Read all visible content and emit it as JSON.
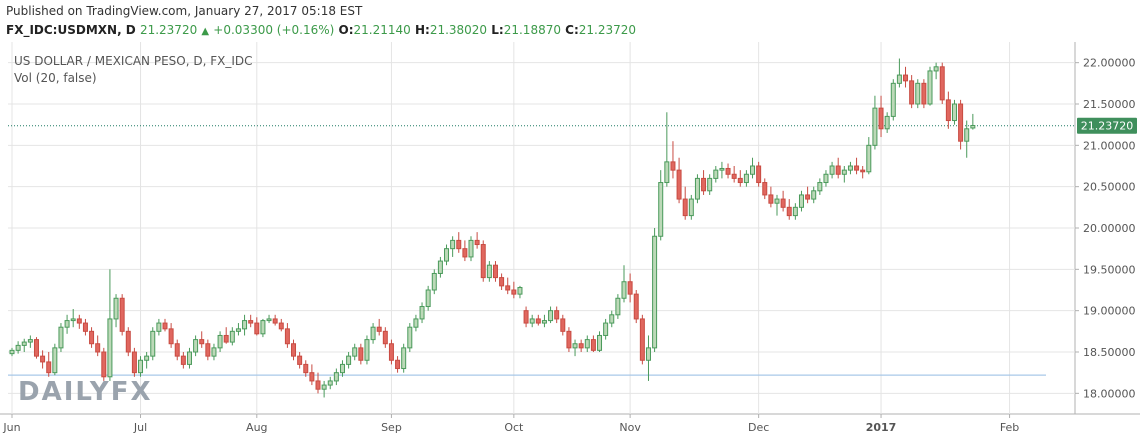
{
  "header": {
    "published": "Published on TradingView.com, January 27, 2017 05:18 EST",
    "symbol": "FX_IDC:USDMXN, D",
    "last": "21.23720",
    "change": "+0.03300 (+0.16%)",
    "o_label": "O:",
    "o_value": "21.21140",
    "h_label": "H:",
    "h_value": "21.38020",
    "l_label": "L:",
    "l_value": "21.18870",
    "c_label": "C:",
    "c_value": "21.23720"
  },
  "chart_data": {
    "type": "candlestick",
    "title": "US DOLLAR / MEXICAN PESO, D, FX_IDC",
    "indicator_label": "Vol (20, false)",
    "watermark": "DAILYFX",
    "ylim": [
      17.75,
      22.25
    ],
    "y_ticks": [
      18.0,
      18.5,
      19.0,
      19.5,
      20.0,
      20.5,
      21.0,
      21.5,
      22.0
    ],
    "y_tick_labels": [
      "18.00000",
      "18.50000",
      "19.00000",
      "19.50000",
      "20.00000",
      "20.50000",
      "21.00000",
      "21.50000",
      "22.00000"
    ],
    "x_labels": [
      {
        "label": "Jun",
        "bar": 0
      },
      {
        "label": "Jul",
        "bar": 21
      },
      {
        "label": "Aug",
        "bar": 40
      },
      {
        "label": "Sep",
        "bar": 62
      },
      {
        "label": "Oct",
        "bar": 82
      },
      {
        "label": "Nov",
        "bar": 101
      },
      {
        "label": "Dec",
        "bar": 122
      },
      {
        "label": "2017",
        "bar": 142,
        "bold": true
      },
      {
        "label": "Feb",
        "bar": 163
      }
    ],
    "last_price": 21.2372,
    "last_price_label": "21.23720",
    "horizontal_line": 18.22,
    "colors": {
      "up": "#4a9a5b",
      "up_fill": "#bcd9b8",
      "down": "#c84b42",
      "down_fill": "#e0675f",
      "price_line": "#1f7a63",
      "hline": "#a8c8e8",
      "grid": "#e4e4e4"
    },
    "ohlc": [
      [
        18.48,
        18.55,
        18.45,
        18.52
      ],
      [
        18.52,
        18.63,
        18.48,
        18.58
      ],
      [
        18.58,
        18.66,
        18.5,
        18.62
      ],
      [
        18.62,
        18.7,
        18.55,
        18.65
      ],
      [
        18.65,
        18.68,
        18.42,
        18.45
      ],
      [
        18.45,
        18.52,
        18.3,
        18.38
      ],
      [
        18.38,
        18.5,
        18.2,
        18.25
      ],
      [
        18.25,
        18.6,
        18.22,
        18.55
      ],
      [
        18.55,
        18.85,
        18.5,
        18.8
      ],
      [
        18.8,
        18.95,
        18.72,
        18.88
      ],
      [
        18.88,
        19.02,
        18.8,
        18.9
      ],
      [
        18.9,
        18.95,
        18.78,
        18.85
      ],
      [
        18.85,
        18.9,
        18.7,
        18.75
      ],
      [
        18.75,
        18.8,
        18.55,
        18.6
      ],
      [
        18.6,
        18.7,
        18.45,
        18.5
      ],
      [
        18.5,
        18.55,
        18.15,
        18.2
      ],
      [
        18.2,
        19.5,
        18.15,
        18.9
      ],
      [
        18.9,
        19.2,
        18.8,
        19.15
      ],
      [
        19.15,
        19.2,
        18.7,
        18.75
      ],
      [
        18.75,
        18.8,
        18.45,
        18.5
      ],
      [
        18.5,
        18.55,
        18.2,
        18.25
      ],
      [
        18.25,
        18.45,
        18.2,
        18.4
      ],
      [
        18.4,
        18.5,
        18.3,
        18.45
      ],
      [
        18.45,
        18.8,
        18.4,
        18.75
      ],
      [
        18.75,
        18.9,
        18.7,
        18.85
      ],
      [
        18.85,
        18.9,
        18.75,
        18.78
      ],
      [
        18.78,
        18.85,
        18.55,
        18.6
      ],
      [
        18.6,
        18.65,
        18.4,
        18.45
      ],
      [
        18.45,
        18.5,
        18.3,
        18.35
      ],
      [
        18.35,
        18.55,
        18.3,
        18.5
      ],
      [
        18.5,
        18.7,
        18.45,
        18.65
      ],
      [
        18.65,
        18.75,
        18.55,
        18.6
      ],
      [
        18.6,
        18.65,
        18.4,
        18.45
      ],
      [
        18.45,
        18.6,
        18.4,
        18.55
      ],
      [
        18.55,
        18.75,
        18.5,
        18.7
      ],
      [
        18.7,
        18.8,
        18.6,
        18.62
      ],
      [
        18.62,
        18.8,
        18.58,
        18.75
      ],
      [
        18.75,
        18.85,
        18.7,
        18.78
      ],
      [
        18.78,
        18.95,
        18.7,
        18.88
      ],
      [
        18.88,
        18.95,
        18.8,
        18.85
      ],
      [
        18.85,
        18.92,
        18.7,
        18.72
      ],
      [
        18.72,
        18.9,
        18.68,
        18.88
      ],
      [
        18.88,
        18.95,
        18.85,
        18.9
      ],
      [
        18.9,
        18.95,
        18.82,
        18.85
      ],
      [
        18.85,
        18.9,
        18.75,
        18.78
      ],
      [
        18.78,
        18.85,
        18.55,
        18.6
      ],
      [
        18.6,
        18.65,
        18.4,
        18.45
      ],
      [
        18.45,
        18.5,
        18.3,
        18.35
      ],
      [
        18.35,
        18.4,
        18.2,
        18.25
      ],
      [
        18.25,
        18.35,
        18.1,
        18.15
      ],
      [
        18.15,
        18.25,
        18.0,
        18.05
      ],
      [
        18.05,
        18.15,
        17.95,
        18.1
      ],
      [
        18.1,
        18.2,
        18.05,
        18.15
      ],
      [
        18.15,
        18.3,
        18.1,
        18.25
      ],
      [
        18.25,
        18.4,
        18.2,
        18.35
      ],
      [
        18.35,
        18.5,
        18.3,
        18.45
      ],
      [
        18.45,
        18.6,
        18.4,
        18.55
      ],
      [
        18.55,
        18.6,
        18.35,
        18.4
      ],
      [
        18.4,
        18.7,
        18.35,
        18.65
      ],
      [
        18.65,
        18.85,
        18.6,
        18.8
      ],
      [
        18.8,
        18.9,
        18.7,
        18.75
      ],
      [
        18.75,
        18.8,
        18.55,
        18.6
      ],
      [
        18.6,
        18.65,
        18.35,
        18.4
      ],
      [
        18.4,
        18.45,
        18.25,
        18.3
      ],
      [
        18.3,
        18.6,
        18.25,
        18.55
      ],
      [
        18.55,
        18.85,
        18.5,
        18.8
      ],
      [
        18.8,
        18.95,
        18.75,
        18.9
      ],
      [
        18.9,
        19.1,
        18.85,
        19.05
      ],
      [
        19.05,
        19.3,
        19.0,
        19.25
      ],
      [
        19.25,
        19.5,
        19.2,
        19.45
      ],
      [
        19.45,
        19.65,
        19.4,
        19.6
      ],
      [
        19.6,
        19.8,
        19.55,
        19.75
      ],
      [
        19.75,
        19.9,
        19.65,
        19.85
      ],
      [
        19.85,
        19.95,
        19.7,
        19.75
      ],
      [
        19.75,
        19.85,
        19.6,
        19.65
      ],
      [
        19.65,
        19.9,
        19.6,
        19.85
      ],
      [
        19.85,
        19.95,
        19.75,
        19.8
      ],
      [
        19.8,
        19.85,
        19.35,
        19.4
      ],
      [
        19.4,
        19.6,
        19.35,
        19.55
      ],
      [
        19.55,
        19.6,
        19.35,
        19.4
      ],
      [
        19.4,
        19.45,
        19.25,
        19.3
      ],
      [
        19.3,
        19.4,
        19.2,
        19.25
      ],
      [
        19.25,
        19.35,
        19.15,
        19.2
      ],
      [
        19.2,
        19.3,
        19.15,
        19.28
      ],
      [
        19.0,
        19.05,
        18.8,
        18.85
      ],
      [
        18.85,
        18.95,
        18.8,
        18.9
      ],
      [
        18.9,
        18.95,
        18.82,
        18.85
      ],
      [
        18.85,
        18.95,
        18.8,
        18.88
      ],
      [
        18.88,
        19.05,
        18.85,
        19.0
      ],
      [
        19.0,
        19.05,
        18.85,
        18.9
      ],
      [
        18.9,
        18.95,
        18.7,
        18.75
      ],
      [
        18.75,
        18.8,
        18.5,
        18.55
      ],
      [
        18.55,
        18.65,
        18.45,
        18.6
      ],
      [
        18.6,
        18.65,
        18.5,
        18.55
      ],
      [
        18.55,
        18.7,
        18.5,
        18.65
      ],
      [
        18.65,
        18.7,
        18.5,
        18.52
      ],
      [
        18.52,
        18.75,
        18.5,
        18.7
      ],
      [
        18.7,
        18.9,
        18.65,
        18.85
      ],
      [
        18.85,
        19.0,
        18.8,
        18.95
      ],
      [
        18.95,
        19.2,
        18.9,
        19.15
      ],
      [
        19.15,
        19.55,
        19.1,
        19.35
      ],
      [
        19.35,
        19.45,
        19.1,
        19.2
      ],
      [
        19.2,
        19.25,
        18.85,
        18.9
      ],
      [
        18.9,
        18.95,
        18.35,
        18.4
      ],
      [
        18.4,
        18.7,
        18.15,
        18.55
      ],
      [
        18.55,
        20.0,
        18.5,
        19.9
      ],
      [
        19.9,
        20.7,
        19.85,
        20.55
      ],
      [
        20.55,
        21.4,
        20.5,
        20.8
      ],
      [
        20.8,
        21.05,
        20.6,
        20.7
      ],
      [
        20.7,
        20.85,
        20.3,
        20.35
      ],
      [
        20.35,
        20.5,
        20.1,
        20.15
      ],
      [
        20.15,
        20.4,
        20.1,
        20.35
      ],
      [
        20.35,
        20.65,
        20.3,
        20.6
      ],
      [
        20.6,
        20.7,
        20.4,
        20.45
      ],
      [
        20.45,
        20.65,
        20.4,
        20.6
      ],
      [
        20.6,
        20.75,
        20.55,
        20.7
      ],
      [
        20.7,
        20.8,
        20.6,
        20.72
      ],
      [
        20.72,
        20.78,
        20.6,
        20.65
      ],
      [
        20.65,
        20.75,
        20.55,
        20.6
      ],
      [
        20.6,
        20.7,
        20.5,
        20.55
      ],
      [
        20.55,
        20.7,
        20.5,
        20.65
      ],
      [
        20.65,
        20.85,
        20.6,
        20.75
      ],
      [
        20.75,
        20.8,
        20.5,
        20.55
      ],
      [
        20.55,
        20.6,
        20.35,
        20.4
      ],
      [
        20.4,
        20.5,
        20.25,
        20.3
      ],
      [
        20.3,
        20.4,
        20.15,
        20.35
      ],
      [
        20.35,
        20.45,
        20.2,
        20.25
      ],
      [
        20.25,
        20.35,
        20.1,
        20.15
      ],
      [
        20.15,
        20.3,
        20.1,
        20.25
      ],
      [
        20.25,
        20.45,
        20.2,
        20.4
      ],
      [
        20.4,
        20.5,
        20.3,
        20.35
      ],
      [
        20.35,
        20.5,
        20.3,
        20.45
      ],
      [
        20.45,
        20.6,
        20.4,
        20.55
      ],
      [
        20.55,
        20.7,
        20.5,
        20.65
      ],
      [
        20.65,
        20.8,
        20.6,
        20.75
      ],
      [
        20.75,
        20.85,
        20.6,
        20.65
      ],
      [
        20.65,
        20.75,
        20.55,
        20.7
      ],
      [
        20.7,
        20.8,
        20.65,
        20.75
      ],
      [
        20.75,
        20.85,
        20.65,
        20.7
      ],
      [
        20.7,
        20.75,
        20.6,
        20.68
      ],
      [
        20.68,
        21.1,
        20.65,
        21.0
      ],
      [
        21.0,
        21.6,
        20.95,
        21.45
      ],
      [
        21.45,
        21.6,
        21.1,
        21.2
      ],
      [
        21.2,
        21.4,
        21.15,
        21.35
      ],
      [
        21.35,
        21.8,
        21.3,
        21.75
      ],
      [
        21.75,
        22.05,
        21.7,
        21.85
      ],
      [
        21.85,
        21.95,
        21.7,
        21.78
      ],
      [
        21.78,
        21.85,
        21.45,
        21.5
      ],
      [
        21.5,
        21.8,
        21.45,
        21.75
      ],
      [
        21.75,
        21.8,
        21.45,
        21.5
      ],
      [
        21.5,
        21.95,
        21.48,
        21.9
      ],
      [
        21.9,
        22.0,
        21.8,
        21.95
      ],
      [
        21.95,
        22.0,
        21.5,
        21.55
      ],
      [
        21.55,
        21.65,
        21.2,
        21.3
      ],
      [
        21.3,
        21.55,
        21.25,
        21.5
      ],
      [
        21.5,
        21.55,
        20.95,
        21.05
      ],
      [
        21.05,
        21.3,
        20.85,
        21.2
      ],
      [
        21.21,
        21.38,
        21.19,
        21.24
      ]
    ]
  }
}
